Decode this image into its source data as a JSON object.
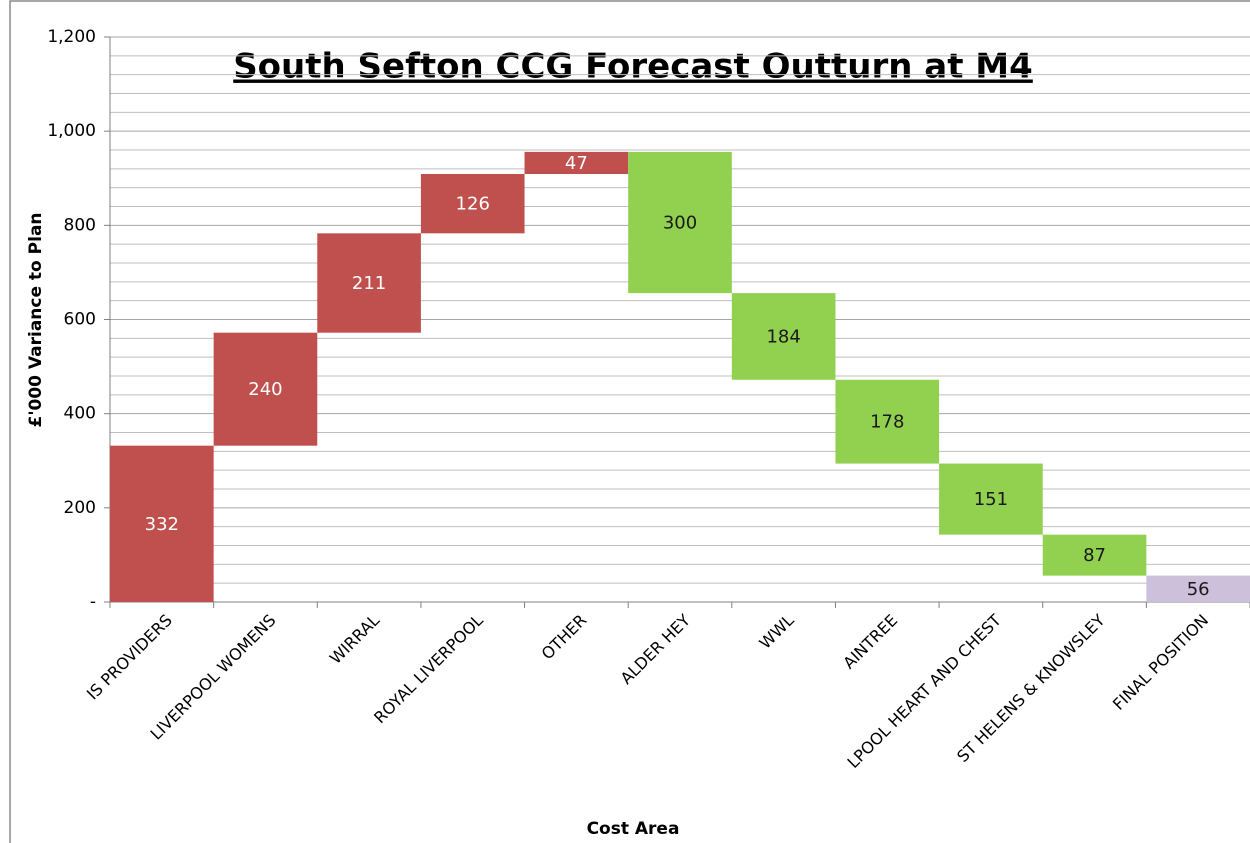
{
  "chart_data": {
    "type": "waterfall",
    "title": "South Sefton CCG Forecast Outturn at M4",
    "x_label": "Cost Area",
    "y_label": "£'000 Variance to Plan",
    "categories": [
      "IS PROVIDERS",
      "LIVERPOOL WOMENS",
      "WIRRAL",
      "ROYAL LIVERPOOL",
      "OTHER",
      "ALDER HEY",
      "WWL",
      "AINTREE",
      "LPOOL HEART AND CHEST",
      "ST HELENS & KNOWSLEY",
      "FINAL POSITION"
    ],
    "values": [
      332,
      240,
      211,
      126,
      47,
      -300,
      -184,
      -178,
      -151,
      -87,
      56
    ],
    "value_labels": [
      "332",
      "240",
      "211",
      "126",
      "47",
      "300",
      "184",
      "178",
      "151",
      "87",
      "56"
    ],
    "measures": [
      "relative",
      "relative",
      "relative",
      "relative",
      "relative",
      "relative",
      "relative",
      "relative",
      "relative",
      "relative",
      "total"
    ],
    "colors": {
      "increase": "#c0504d",
      "decrease": "#92d050",
      "total": "#ccc0da"
    },
    "ylim": [
      0,
      1200
    ],
    "yticks": [
      {
        "value": 0,
        "label": "-"
      },
      200,
      400,
      600,
      800,
      {
        "value": 1000,
        "label": "1,000"
      },
      {
        "value": 1200,
        "label": "1,200"
      }
    ],
    "grid": true
  }
}
